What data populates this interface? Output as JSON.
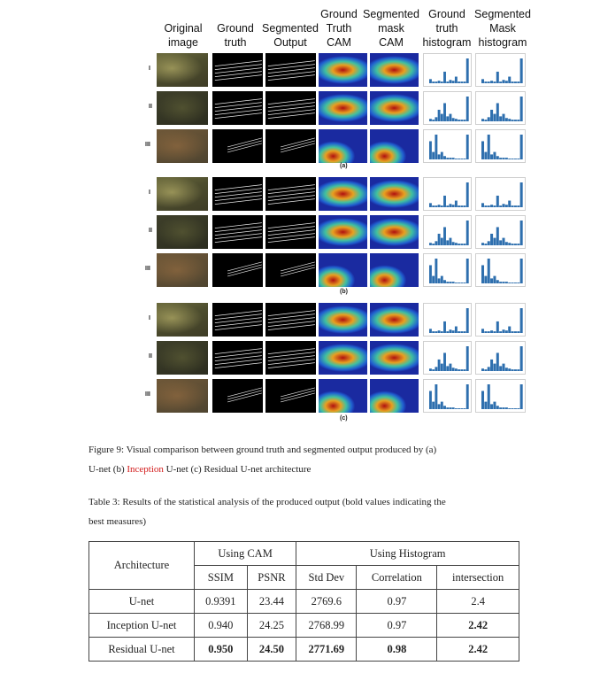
{
  "figure": {
    "column_headers": [
      "Original\nimage",
      "Ground\ntruth",
      "Segmented\nOutput",
      "Ground\nTruth\nCAM",
      "Segmented\nmask\nCAM",
      "Ground\ntruth\nhistogram",
      "Segmented\nMask\nhistogram"
    ],
    "row_labels": [
      "I",
      "II",
      "III"
    ],
    "panel_labels": [
      "(a)",
      "(b)",
      "(c)"
    ]
  },
  "caption": {
    "figure_prefix": "Figure 9:  Visual comparison between ground truth and segmented output produced by (a)",
    "figure_line2_pre": "U-net (b) ",
    "figure_line2_red": "Inception",
    "figure_line2_post": " U-net (c) Residual U-net architecture",
    "table_line1": "Table 3: Results of the statistical analysis of the produced output (bold values indicating the",
    "table_line2": "best measures)"
  },
  "table": {
    "group_headers": {
      "architecture": "Architecture",
      "cam": "Using CAM",
      "histogram": "Using Histogram"
    },
    "sub_headers": [
      "SSIM",
      "PSNR",
      "Std Dev",
      "Correlation",
      "intersection"
    ],
    "rows": [
      {
        "name": "U-net",
        "values": [
          "0.9391",
          "23.44",
          "2769.6",
          "0.97",
          "2.4"
        ],
        "bold": [
          false,
          false,
          false,
          false,
          false
        ]
      },
      {
        "name": "Inception U-net",
        "values": [
          "0.940",
          "24.25",
          "2768.99",
          "0.97",
          "2.42"
        ],
        "bold": [
          false,
          false,
          false,
          false,
          true
        ]
      },
      {
        "name": "Residual U-net",
        "values": [
          "0.950",
          "24.50",
          "2771.69",
          "0.98",
          "2.42"
        ],
        "bold": [
          true,
          true,
          true,
          true,
          true
        ]
      }
    ]
  },
  "colors": {
    "caption_link": "#d21b1b",
    "cam_background": "#1a2aa0",
    "histogram_bar": "#2e6fae"
  }
}
